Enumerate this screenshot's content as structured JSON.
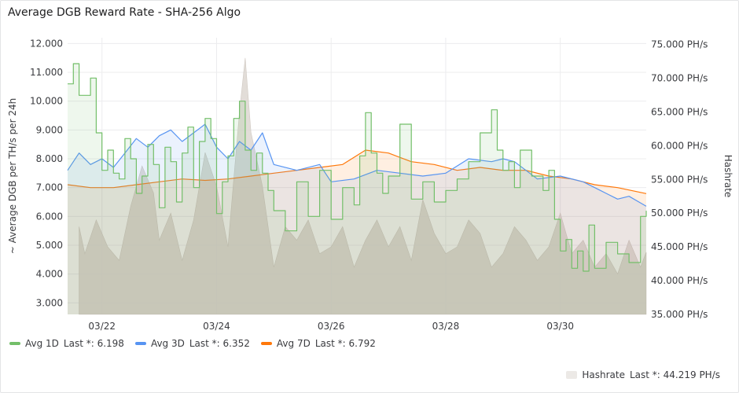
{
  "panel": {
    "title": "Average DGB Reward Rate - SHA-256 Algo"
  },
  "chart_data": {
    "type": "line",
    "title": "Average DGB Reward Rate - SHA-256 Algo",
    "ylabel_left": "~ Average DGB per TH/s per 24h",
    "ylabel_right": "Hashrate",
    "ylim_left": [
      2.6,
      12.2
    ],
    "ylim_right": [
      35,
      76
    ],
    "yticks_left": [
      "12.000",
      "11.000",
      "10.000",
      "9.000",
      "8.000",
      "7.000",
      "6.000",
      "5.000",
      "4.000",
      "3.000"
    ],
    "yticks_left_values": [
      12,
      11,
      10,
      9,
      8,
      7,
      6,
      5,
      4,
      3
    ],
    "yticks_right": [
      "75.000 PH/s",
      "70.000 PH/s",
      "65.000 PH/s",
      "60.000 PH/s",
      "55.000 PH/s",
      "50.000 PH/s",
      "45.000 PH/s",
      "40.000 PH/s",
      "35.000 PH/s"
    ],
    "yticks_right_values": [
      75,
      70,
      65,
      60,
      55,
      50,
      45,
      40,
      35
    ],
    "xlim": [
      21.4,
      31.5
    ],
    "xticks": [
      "03/22",
      "03/24",
      "03/26",
      "03/28",
      "03/30"
    ],
    "xticks_values": [
      22,
      24,
      26,
      28,
      30
    ],
    "grid": true,
    "legend_position": "bottom",
    "colors": {
      "avg1d": "#73bf69",
      "avg3d": "#5794f2",
      "avg7d": "#ff780a",
      "hashrate": "#ddd7d1"
    },
    "series": [
      {
        "name": "Avg 1D",
        "axis": "left",
        "last_label": "Last *: 6.198",
        "x": [
          21.4,
          21.5,
          21.6,
          21.8,
          21.9,
          22.0,
          22.1,
          22.2,
          22.3,
          22.4,
          22.5,
          22.6,
          22.7,
          22.8,
          22.9,
          23.0,
          23.1,
          23.2,
          23.3,
          23.4,
          23.5,
          23.6,
          23.7,
          23.8,
          23.9,
          24.0,
          24.1,
          24.2,
          24.3,
          24.4,
          24.5,
          24.6,
          24.7,
          24.8,
          24.9,
          25.0,
          25.2,
          25.4,
          25.6,
          25.8,
          26.0,
          26.2,
          26.4,
          26.5,
          26.6,
          26.7,
          26.8,
          26.9,
          27.0,
          27.2,
          27.4,
          27.6,
          27.8,
          28.0,
          28.2,
          28.4,
          28.6,
          28.8,
          28.9,
          29.0,
          29.1,
          29.2,
          29.3,
          29.5,
          29.7,
          29.8,
          29.9,
          30.0,
          30.1,
          30.2,
          30.3,
          30.4,
          30.5,
          30.6,
          30.8,
          31.0,
          31.2,
          31.4,
          31.5
        ],
        "y": [
          10.6,
          11.3,
          10.2,
          10.8,
          8.9,
          7.6,
          8.3,
          7.5,
          7.3,
          8.7,
          8.0,
          6.8,
          7.4,
          8.5,
          7.8,
          6.3,
          8.4,
          7.9,
          6.5,
          8.2,
          9.1,
          7.0,
          8.6,
          9.4,
          8.7,
          6.1,
          7.2,
          8.1,
          9.4,
          10.0,
          8.3,
          7.6,
          8.2,
          7.5,
          6.9,
          6.2,
          5.5,
          7.2,
          6.0,
          7.6,
          5.9,
          7.0,
          6.4,
          8.1,
          9.6,
          8.2,
          7.5,
          6.8,
          7.4,
          9.2,
          6.6,
          7.2,
          6.5,
          6.9,
          7.3,
          7.9,
          8.9,
          9.7,
          8.3,
          7.6,
          7.9,
          7.0,
          8.3,
          7.4,
          6.9,
          7.6,
          5.9,
          4.8,
          5.2,
          4.2,
          4.8,
          4.1,
          5.7,
          4.2,
          5.1,
          4.7,
          4.4,
          6.0,
          6.198
        ]
      },
      {
        "name": "Avg 3D",
        "axis": "left",
        "last_label": "Last *: 6.352",
        "x": [
          21.4,
          21.6,
          21.8,
          22.0,
          22.2,
          22.4,
          22.6,
          22.8,
          23.0,
          23.2,
          23.4,
          23.6,
          23.8,
          24.0,
          24.2,
          24.4,
          24.6,
          24.8,
          25.0,
          25.4,
          25.8,
          26.0,
          26.4,
          26.8,
          27.2,
          27.6,
          28.0,
          28.4,
          28.8,
          29.0,
          29.2,
          29.6,
          30.0,
          30.4,
          30.8,
          31.0,
          31.2,
          31.5
        ],
        "y": [
          7.6,
          8.2,
          7.8,
          8.0,
          7.7,
          8.2,
          8.7,
          8.4,
          8.8,
          9.0,
          8.6,
          8.9,
          9.2,
          8.4,
          8.0,
          8.6,
          8.3,
          8.9,
          7.8,
          7.6,
          7.8,
          7.2,
          7.3,
          7.6,
          7.5,
          7.4,
          7.5,
          8.0,
          7.9,
          8.0,
          7.9,
          7.3,
          7.4,
          7.2,
          6.8,
          6.6,
          6.7,
          6.352
        ]
      },
      {
        "name": "Avg 7D",
        "axis": "left",
        "last_label": "Last *: 6.792",
        "x": [
          21.4,
          21.8,
          22.2,
          22.6,
          23.0,
          23.4,
          23.8,
          24.2,
          24.6,
          25.0,
          25.4,
          25.8,
          26.2,
          26.6,
          27.0,
          27.4,
          27.8,
          28.2,
          28.6,
          29.0,
          29.4,
          29.8,
          30.2,
          30.6,
          31.0,
          31.5
        ],
        "y": [
          7.1,
          7.0,
          7.0,
          7.1,
          7.2,
          7.3,
          7.25,
          7.3,
          7.4,
          7.5,
          7.6,
          7.7,
          7.8,
          8.3,
          8.2,
          7.9,
          7.8,
          7.6,
          7.7,
          7.6,
          7.6,
          7.4,
          7.3,
          7.1,
          7.0,
          6.792
        ]
      },
      {
        "name": "Hashrate",
        "axis": "right",
        "last_label": "Last *: 44.219 PH/s",
        "x": [
          21.6,
          21.7,
          21.9,
          22.1,
          22.3,
          22.5,
          22.7,
          22.9,
          23.0,
          23.2,
          23.4,
          23.6,
          23.8,
          24.0,
          24.2,
          24.4,
          24.5,
          24.6,
          24.8,
          25.0,
          25.2,
          25.4,
          25.6,
          25.8,
          26.0,
          26.2,
          26.4,
          26.6,
          26.8,
          27.0,
          27.2,
          27.4,
          27.6,
          27.8,
          28.0,
          28.2,
          28.4,
          28.6,
          28.8,
          29.0,
          29.2,
          29.4,
          29.6,
          29.8,
          30.0,
          30.2,
          30.4,
          30.6,
          30.8,
          31.0,
          31.2,
          31.4,
          31.5
        ],
        "y": [
          48,
          44,
          49,
          45,
          43,
          51,
          57,
          53,
          46,
          50,
          43,
          49,
          59,
          54,
          45,
          65,
          73,
          62,
          54,
          42,
          48,
          46,
          49,
          44,
          45,
          48,
          42,
          46,
          49,
          45,
          48,
          43,
          52,
          47,
          44,
          45,
          49,
          47,
          42,
          44,
          48,
          46,
          43,
          45,
          50,
          44,
          46,
          42,
          44,
          41,
          46,
          42,
          44.219
        ]
      }
    ]
  },
  "legend": {
    "items": [
      {
        "name": "Avg 1D",
        "last": "Last *: 6.198"
      },
      {
        "name": "Avg 3D",
        "last": "Last *: 6.352"
      },
      {
        "name": "Avg 7D",
        "last": "Last *: 6.792"
      }
    ],
    "hashrate": {
      "name": "Hashrate",
      "last": "Last *: 44.219 PH/s"
    }
  }
}
